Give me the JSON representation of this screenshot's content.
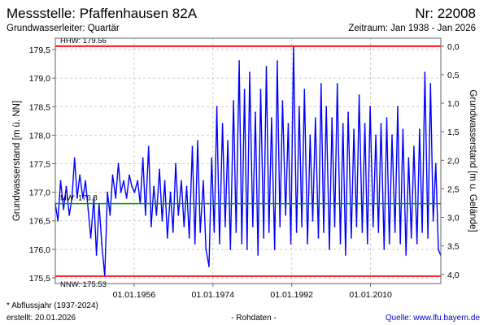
{
  "header": {
    "title": "Messstelle: Pfaffenhausen 82A",
    "number": "Nr: 22008",
    "aquifer": "Grundwasserleiter: Quartär",
    "period": "Zeitraum: Jan 1938 - Jan 2026"
  },
  "footer": {
    "note": "* Abflussjahr (1937-2024)",
    "created": "erstellt:  20.01.2026",
    "raw": "- Rohdaten -",
    "source": "Quelle: www.lfu.bayern.de"
  },
  "colors": {
    "series": "#0000ff",
    "reference": "#ff0000",
    "mean": "#009900",
    "grid": "#cccccc",
    "frame": "#666666"
  },
  "chart_data": {
    "type": "line",
    "title": "Messstelle: Pfaffenhausen 82A",
    "ylabel": "Grundwasserstand [m ü. NN]",
    "y2label": "Grundwasserstand [m u. Gelände]",
    "xlim": [
      1938.0,
      2026.05
    ],
    "ylim": [
      175.4,
      179.7
    ],
    "y2lim": [
      -0.14,
      4.16
    ],
    "grid": true,
    "x_ticks": [
      {
        "value": 1956.0,
        "label": "01.01.1956"
      },
      {
        "value": 1974.0,
        "label": "01.01.1974"
      },
      {
        "value": 1992.0,
        "label": "01.01.1992"
      },
      {
        "value": 2010.0,
        "label": "01.01.2010"
      }
    ],
    "y_ticks": [
      {
        "value": 175.5,
        "label": "175,5"
      },
      {
        "value": 176.0,
        "label": "176,0"
      },
      {
        "value": 176.5,
        "label": "176,5"
      },
      {
        "value": 177.0,
        "label": "177,0"
      },
      {
        "value": 177.5,
        "label": "177,5"
      },
      {
        "value": 178.0,
        "label": "178,0"
      },
      {
        "value": 178.5,
        "label": "178,5"
      },
      {
        "value": 179.0,
        "label": "179,0"
      },
      {
        "value": 179.5,
        "label": "179,5"
      }
    ],
    "y2_ticks": [
      {
        "value": 0.0,
        "label": "0,0"
      },
      {
        "value": 0.5,
        "label": "0,5"
      },
      {
        "value": 1.0,
        "label": "1,0"
      },
      {
        "value": 1.5,
        "label": "1,5"
      },
      {
        "value": 2.0,
        "label": "2,0"
      },
      {
        "value": 2.5,
        "label": "2,5"
      },
      {
        "value": 3.0,
        "label": "3,0"
      },
      {
        "value": 3.5,
        "label": "3,5"
      },
      {
        "value": 4.0,
        "label": "4,0"
      }
    ],
    "reference_lines": [
      {
        "name": "HHW",
        "value": 179.56,
        "label": "HHW: 179.56"
      },
      {
        "name": "MW",
        "value": 176.8,
        "label": "MW: 176.8"
      },
      {
        "name": "NNW",
        "value": 175.53,
        "label": "NNW: 175.53"
      }
    ],
    "series": [
      {
        "values": [
          [
            1938.0,
            176.8
          ],
          [
            1938.6,
            176.5
          ],
          [
            1939.2,
            177.2
          ],
          [
            1939.9,
            176.7
          ],
          [
            1940.5,
            177.1
          ],
          [
            1941.2,
            176.6
          ],
          [
            1941.8,
            176.9
          ],
          [
            1942.4,
            177.6
          ],
          [
            1943.0,
            176.9
          ],
          [
            1943.6,
            177.3
          ],
          [
            1944.3,
            176.9
          ],
          [
            1944.9,
            177.2
          ],
          [
            1945.5,
            176.7
          ],
          [
            1946.1,
            176.2
          ],
          [
            1946.8,
            176.9
          ],
          [
            1947.4,
            175.9
          ],
          [
            1948.0,
            176.8
          ],
          [
            1948.6,
            176.1
          ],
          [
            1949.3,
            175.53
          ],
          [
            1949.9,
            177.0
          ],
          [
            1950.5,
            176.6
          ],
          [
            1951.1,
            177.3
          ],
          [
            1951.8,
            176.9
          ],
          [
            1952.4,
            177.5
          ],
          [
            1953.0,
            177.0
          ],
          [
            1953.6,
            177.2
          ],
          [
            1954.3,
            176.9
          ],
          [
            1954.9,
            177.3
          ],
          [
            1955.5,
            177.1
          ],
          [
            1956.1,
            177.0
          ],
          [
            1956.8,
            177.2
          ],
          [
            1957.4,
            176.8
          ],
          [
            1958.0,
            177.6
          ],
          [
            1958.6,
            176.6
          ],
          [
            1959.3,
            177.8
          ],
          [
            1959.9,
            176.4
          ],
          [
            1960.5,
            177.1
          ],
          [
            1961.1,
            176.6
          ],
          [
            1961.8,
            177.4
          ],
          [
            1962.4,
            176.5
          ],
          [
            1963.0,
            177.2
          ],
          [
            1963.6,
            176.2
          ],
          [
            1964.3,
            177.0
          ],
          [
            1964.9,
            176.3
          ],
          [
            1965.5,
            177.5
          ],
          [
            1966.1,
            176.6
          ],
          [
            1966.8,
            177.2
          ],
          [
            1967.4,
            176.4
          ],
          [
            1968.0,
            177.1
          ],
          [
            1968.6,
            176.2
          ],
          [
            1969.3,
            177.8
          ],
          [
            1969.9,
            176.1
          ],
          [
            1970.5,
            177.9
          ],
          [
            1971.1,
            176.3
          ],
          [
            1971.8,
            177.2
          ],
          [
            1972.4,
            176.0
          ],
          [
            1973.1,
            175.7
          ],
          [
            1973.7,
            177.6
          ],
          [
            1974.3,
            176.3
          ],
          [
            1974.9,
            178.5
          ],
          [
            1975.5,
            176.1
          ],
          [
            1976.2,
            178.2
          ],
          [
            1976.8,
            176.4
          ],
          [
            1977.4,
            177.9
          ],
          [
            1978.0,
            176.0
          ],
          [
            1978.7,
            178.6
          ],
          [
            1979.3,
            176.3
          ],
          [
            1980.0,
            179.3
          ],
          [
            1980.6,
            176.1
          ],
          [
            1981.2,
            178.8
          ],
          [
            1981.8,
            176.0
          ],
          [
            1982.4,
            179.1
          ],
          [
            1983.1,
            176.4
          ],
          [
            1983.7,
            178.4
          ],
          [
            1984.3,
            175.9
          ],
          [
            1984.9,
            178.8
          ],
          [
            1985.6,
            176.2
          ],
          [
            1986.2,
            179.2
          ],
          [
            1986.8,
            176.3
          ],
          [
            1987.4,
            178.3
          ],
          [
            1988.1,
            176.0
          ],
          [
            1988.7,
            179.3
          ],
          [
            1989.3,
            176.4
          ],
          [
            1989.9,
            178.6
          ],
          [
            1990.6,
            176.6
          ],
          [
            1991.2,
            178.2
          ],
          [
            1991.8,
            176.1
          ],
          [
            1992.4,
            179.56
          ],
          [
            1993.1,
            176.3
          ],
          [
            1993.7,
            178.5
          ],
          [
            1994.3,
            176.4
          ],
          [
            1994.9,
            178.8
          ],
          [
            1995.6,
            176.1
          ],
          [
            1996.2,
            178.0
          ],
          [
            1996.8,
            176.5
          ],
          [
            1997.4,
            178.3
          ],
          [
            1998.1,
            176.2
          ],
          [
            1998.7,
            178.9
          ],
          [
            1999.3,
            176.3
          ],
          [
            1999.9,
            178.5
          ],
          [
            2000.6,
            176.0
          ],
          [
            2001.2,
            178.3
          ],
          [
            2001.8,
            176.4
          ],
          [
            2002.4,
            178.9
          ],
          [
            2003.1,
            176.1
          ],
          [
            2003.7,
            178.2
          ],
          [
            2004.3,
            175.9
          ],
          [
            2004.9,
            178.4
          ],
          [
            2005.6,
            176.2
          ],
          [
            2006.2,
            178.1
          ],
          [
            2006.8,
            176.4
          ],
          [
            2007.4,
            178.7
          ],
          [
            2008.1,
            176.3
          ],
          [
            2008.7,
            178.2
          ],
          [
            2009.3,
            176.1
          ],
          [
            2009.9,
            178.5
          ],
          [
            2010.6,
            176.4
          ],
          [
            2011.2,
            178.0
          ],
          [
            2011.8,
            176.3
          ],
          [
            2012.4,
            178.2
          ],
          [
            2013.1,
            176.0
          ],
          [
            2013.7,
            178.3
          ],
          [
            2014.3,
            176.1
          ],
          [
            2014.9,
            178.0
          ],
          [
            2015.6,
            176.3
          ],
          [
            2016.2,
            178.5
          ],
          [
            2016.8,
            176.1
          ],
          [
            2017.4,
            178.1
          ],
          [
            2018.1,
            175.9
          ],
          [
            2018.7,
            177.6
          ],
          [
            2019.3,
            176.2
          ],
          [
            2019.9,
            177.8
          ],
          [
            2020.6,
            176.1
          ],
          [
            2021.2,
            178.1
          ],
          [
            2021.8,
            176.3
          ],
          [
            2022.4,
            179.1
          ],
          [
            2023.1,
            176.2
          ],
          [
            2023.7,
            178.9
          ],
          [
            2024.3,
            176.5
          ],
          [
            2024.9,
            177.5
          ],
          [
            2025.5,
            176.0
          ],
          [
            2026.0,
            175.9
          ]
        ]
      }
    ]
  }
}
